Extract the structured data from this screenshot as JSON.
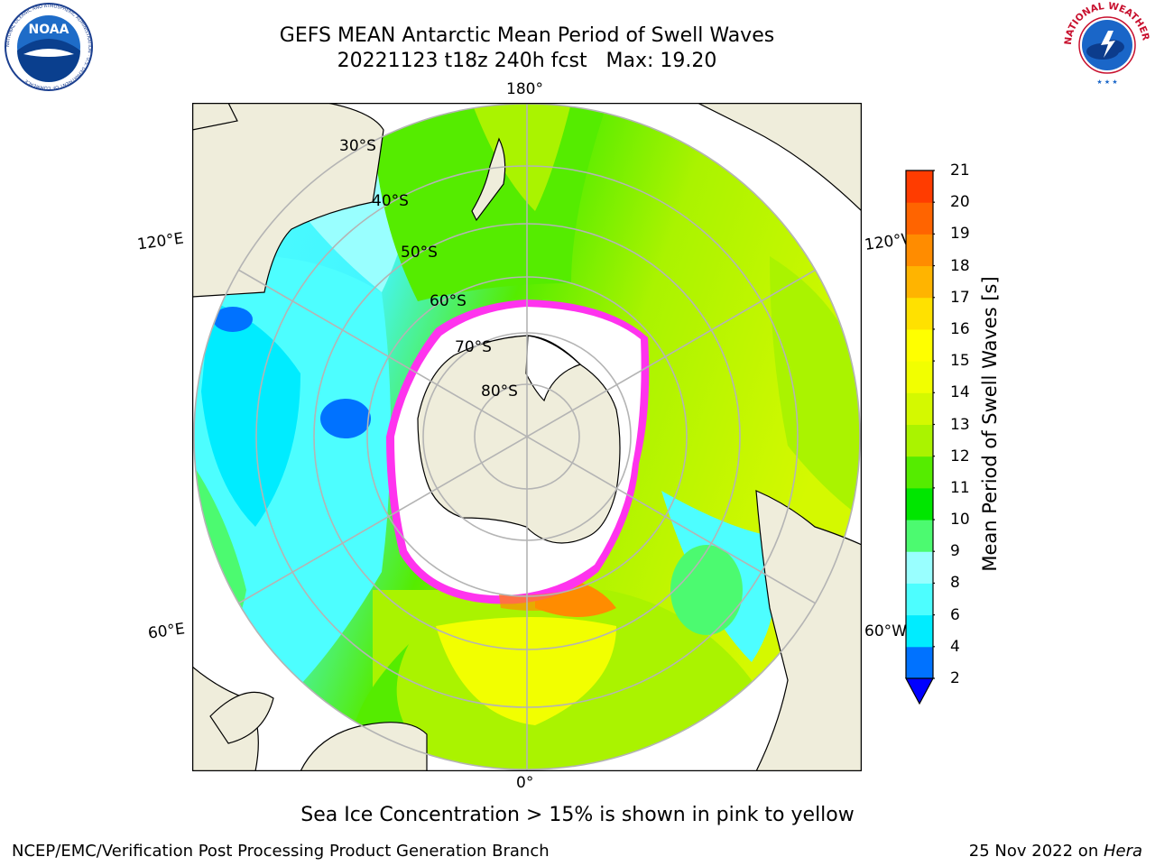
{
  "header": {
    "title_line1": "GEFS MEAN Antarctic Mean Period of Swell Waves",
    "title_line2": "20221123 t18z 240h fcst   Max: 19.20"
  },
  "logos": {
    "left": {
      "text": "NOAA",
      "ring_text": "NATIONAL OCEANIC AND ATMOSPHERIC ADMINISTRATION · U.S. DEPARTMENT OF COMMERCE"
    },
    "right": {
      "ring_text": "NATIONAL WEATHER SERVICE"
    }
  },
  "map": {
    "lon_labels": {
      "top": "180°",
      "bottom": "0°",
      "upper_left": "120°E",
      "upper_right": "120°W",
      "lower_left": "60°E",
      "lower_right": "60°W"
    },
    "lat_labels": [
      "30°S",
      "40°S",
      "50°S",
      "60°S",
      "70°S",
      "80°S"
    ],
    "colors": {
      "land": "#efeddb",
      "ice": "#ffffff",
      "ice_edge": "#ff33ee",
      "frame": "#000000",
      "grid": "#b4b4b4"
    }
  },
  "colorbar": {
    "label": "Mean Period of Swell Waves [s]",
    "ticks": [
      "2",
      "4",
      "6",
      "8",
      "9",
      "10",
      "11",
      "12",
      "13",
      "14",
      "15",
      "16",
      "17",
      "18",
      "19",
      "20",
      "21"
    ],
    "colors": [
      "#0072ff",
      "#00ecff",
      "#4dfeff",
      "#99ffff",
      "#4cfa70",
      "#00e600",
      "#55ec00",
      "#aaf300",
      "#d4f900",
      "#f2ff00",
      "#ffff00",
      "#ffe100",
      "#ffb400",
      "#ff8c00",
      "#ff6400",
      "#ff3c00",
      "#ff0000"
    ],
    "under_color": "#0000ff"
  },
  "caption": "Sea Ice Concentration > 15% is shown in pink to yellow",
  "footer": {
    "left": "NCEP/EMC/Verification Post Processing Product Generation Branch",
    "right_prefix": "25 Nov 2022 on ",
    "right_italic": "Hera"
  }
}
